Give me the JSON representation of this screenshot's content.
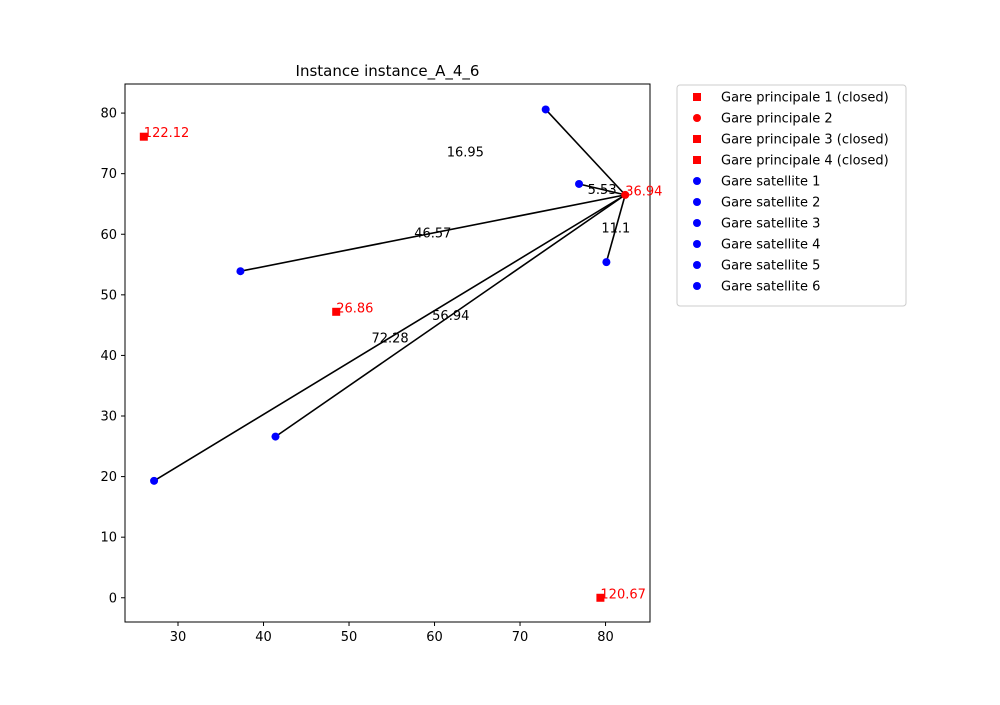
{
  "chart_data": {
    "type": "scatter",
    "title": "Instance instance_A_4_6",
    "xlabel": "",
    "ylabel": "",
    "xlim": [
      23.8,
      85.2
    ],
    "ylim": [
      -4.0,
      84.8
    ],
    "xticks": [
      30,
      40,
      50,
      60,
      70,
      80
    ],
    "yticks": [
      0,
      10,
      20,
      30,
      40,
      50,
      60,
      70,
      80
    ],
    "grid": false,
    "legend_placement": "outside-right",
    "colors": {
      "principal": "#ff0000",
      "satellite": "#0000ff",
      "edge": "#000000"
    },
    "principal_stations": [
      {
        "name": "Gare principale 1 (closed)",
        "x": 26.0,
        "y": 76.1,
        "marker": "square",
        "label": "122.12"
      },
      {
        "name": "Gare principale 2",
        "x": 82.3,
        "y": 66.5,
        "marker": "circle",
        "label": "36.94"
      },
      {
        "name": "Gare principale 3 (closed)",
        "x": 48.5,
        "y": 47.2,
        "marker": "square",
        "label": "26.86"
      },
      {
        "name": "Gare principale 4 (closed)",
        "x": 79.4,
        "y": 0.0,
        "marker": "square",
        "label": "120.67"
      }
    ],
    "satellite_stations": [
      {
        "name": "Gare satellite 1",
        "x": 73.0,
        "y": 80.6
      },
      {
        "name": "Gare satellite 2",
        "x": 37.3,
        "y": 53.9
      },
      {
        "name": "Gare satellite 3",
        "x": 41.4,
        "y": 26.6
      },
      {
        "name": "Gare satellite 4",
        "x": 27.2,
        "y": 19.3
      },
      {
        "name": "Gare satellite 5",
        "x": 80.1,
        "y": 55.4
      },
      {
        "name": "Gare satellite 6",
        "x": 76.9,
        "y": 68.3
      }
    ],
    "connections": [
      {
        "from": "Gare satellite 1",
        "to": "Gare principale 2",
        "label": "16.95",
        "label_x": 63.6,
        "label_y": 73.6
      },
      {
        "from": "Gare satellite 2",
        "to": "Gare principale 2",
        "label": "46.57",
        "label_x": 59.8,
        "label_y": 60.2
      },
      {
        "from": "Gare satellite 3",
        "to": "Gare principale 2",
        "label": "56.94",
        "label_x": 61.9,
        "label_y": 46.6
      },
      {
        "from": "Gare satellite 4",
        "to": "Gare principale 2",
        "label": "72.28",
        "label_x": 54.8,
        "label_y": 42.9
      },
      {
        "from": "Gare satellite 5",
        "to": "Gare principale 2",
        "label": "11.1",
        "label_x": 81.2,
        "label_y": 61.0
      },
      {
        "from": "Gare satellite 6",
        "to": "Gare principale 2",
        "label": "5.53",
        "label_x": 79.6,
        "label_y": 67.4
      }
    ],
    "legend": [
      "Gare principale 1 (closed)",
      "Gare principale 2",
      "Gare principale 3 (closed)",
      "Gare principale 4 (closed)",
      "Gare satellite 1",
      "Gare satellite 2",
      "Gare satellite 3",
      "Gare satellite 4",
      "Gare satellite 5",
      "Gare satellite 6"
    ]
  }
}
